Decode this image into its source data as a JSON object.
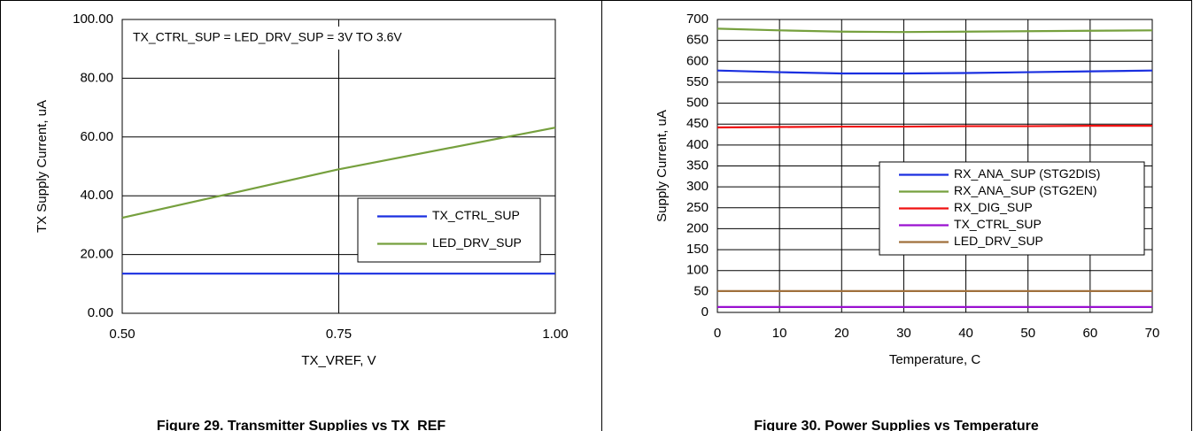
{
  "chart_data": [
    {
      "type": "line",
      "annotation": "TX_CTRL_SUP = LED_DRV_SUP = 3V TO 3.6V",
      "caption": "Figure 29. Transmitter Supplies vs TX_REF",
      "xlabel": "TX_VREF, V",
      "ylabel": "TX Supply Current, uA",
      "x": [
        0.5,
        0.75,
        1.0
      ],
      "xlim": [
        0.5,
        1.0
      ],
      "xticks": [
        {
          "value": 0.5,
          "label": "0.50"
        },
        {
          "value": 0.75,
          "label": "0.75"
        },
        {
          "value": 1.0,
          "label": "1.00"
        }
      ],
      "ylim": [
        0,
        100
      ],
      "yticks": [
        {
          "value": 0,
          "label": "0.00"
        },
        {
          "value": 20,
          "label": "20.00"
        },
        {
          "value": 40,
          "label": "40.00"
        },
        {
          "value": 60,
          "label": "60.00"
        },
        {
          "value": 80,
          "label": "80.00"
        },
        {
          "value": 100,
          "label": "100.00"
        }
      ],
      "grid": true,
      "legend": "right",
      "series": [
        {
          "name": "TX_CTRL_SUP",
          "color": "#1a2fe0",
          "values": [
            13.5,
            13.5,
            13.5
          ]
        },
        {
          "name": "LED_DRV_SUP",
          "color": "#76a03e",
          "values": [
            32.5,
            49,
            63.2
          ]
        }
      ]
    },
    {
      "type": "line",
      "caption": "Figure 30. Power Supplies vs Temperature",
      "xlabel": "Temperature, C",
      "ylabel": "Supply Current, uA",
      "x": [
        0,
        10,
        20,
        30,
        40,
        50,
        60,
        70
      ],
      "xlim": [
        0,
        70
      ],
      "xticks": [
        0,
        10,
        20,
        30,
        40,
        50,
        60,
        70
      ],
      "ylim": [
        0,
        700
      ],
      "yticks": [
        0,
        50,
        100,
        150,
        200,
        250,
        300,
        350,
        400,
        450,
        500,
        550,
        600,
        650,
        700
      ],
      "grid": true,
      "legend": "center-right",
      "series": [
        {
          "name": "RX_ANA_SUP (STG2DIS)",
          "color": "#1a2fe0",
          "values": [
            578,
            574,
            571,
            571,
            572,
            574,
            576,
            578
          ]
        },
        {
          "name": "RX_ANA_SUP (STG2EN)",
          "color": "#76a03e",
          "values": [
            678,
            674,
            671,
            670,
            671,
            672,
            673,
            674
          ]
        },
        {
          "name": "RX_DIG_SUP",
          "color": "#f01010",
          "values": [
            442,
            443,
            444,
            444,
            445,
            445,
            446,
            446
          ]
        },
        {
          "name": "TX_CTRL_SUP",
          "color": "#9a10d0",
          "values": [
            13,
            13,
            13,
            13,
            13,
            13,
            13,
            13
          ]
        },
        {
          "name": "LED_DRV_SUP",
          "color": "#a0703c",
          "values": [
            51,
            51,
            51,
            51,
            51,
            51,
            51,
            51
          ]
        }
      ]
    }
  ]
}
